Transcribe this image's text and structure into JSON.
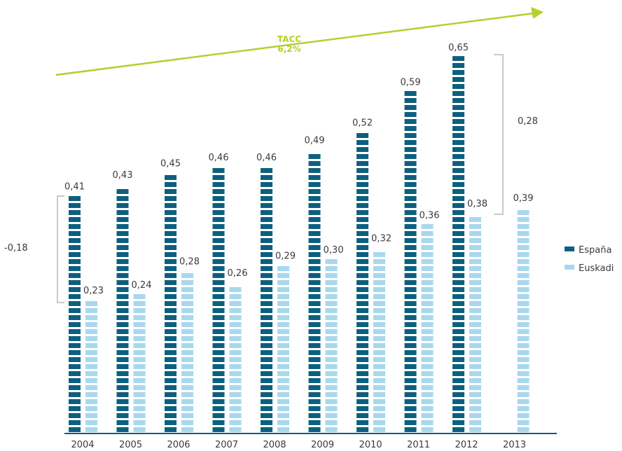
{
  "chart_data": {
    "type": "bar",
    "title": "",
    "xlabel": "",
    "ylabel": "",
    "ylim": [
      0,
      0.7
    ],
    "grid": false,
    "legend_position": "right",
    "categories": [
      "2004",
      "2005",
      "2006",
      "2007",
      "2008",
      "2009",
      "2010",
      "2011",
      "2012",
      "2013"
    ],
    "series": [
      {
        "name": "España",
        "color": "#0d5f7f",
        "values": [
          0.41,
          0.43,
          0.45,
          0.46,
          0.46,
          0.49,
          0.52,
          0.59,
          0.65,
          null
        ],
        "labels": [
          "0,41",
          "0,43",
          "0,45",
          "0,46",
          "0,46",
          "0,49",
          "0,52",
          "0,59",
          "0,65",
          ""
        ]
      },
      {
        "name": "Euskadi",
        "color": "#a8d8ef",
        "values": [
          0.23,
          0.24,
          0.28,
          0.26,
          0.29,
          0.3,
          0.32,
          0.36,
          0.38,
          0.39
        ],
        "labels": [
          "0,23",
          "0,24",
          "0,28",
          "0,26",
          "0,29",
          "0,30",
          "0,32",
          "0,36",
          "0,38",
          "0,39"
        ]
      }
    ],
    "annotations": {
      "gap_2004": "-0,18",
      "gap_2012": "0,28",
      "trend_title": "TACC",
      "trend_value": "6,2%",
      "trend_color": "#b5cf2e"
    }
  }
}
